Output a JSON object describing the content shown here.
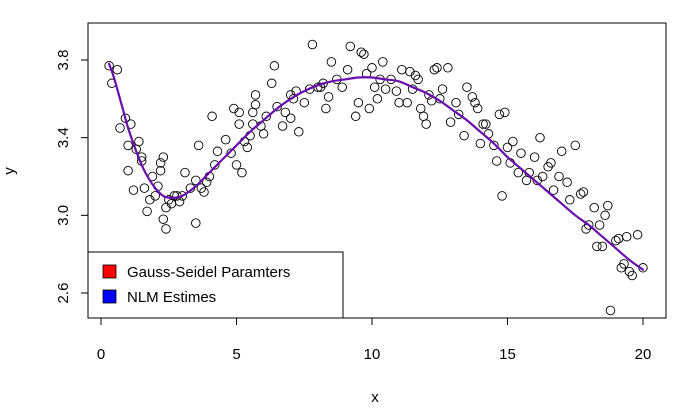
{
  "chart_data": {
    "type": "scatter",
    "xlabel": "x",
    "ylabel": "y",
    "xlim": [
      0,
      20
    ],
    "ylim": [
      2.6,
      3.8
    ],
    "x_ticks": [
      0,
      5,
      10,
      15,
      20
    ],
    "x_tick_labels": [
      "0",
      "5",
      "10",
      "15",
      "20"
    ],
    "y_ticks": [
      2.6,
      3.0,
      3.4,
      3.8
    ],
    "y_tick_labels": [
      "2.6",
      "3.0",
      "3.4",
      "3.8"
    ],
    "points": [
      [
        0.3,
        3.77
      ],
      [
        0.4,
        3.68
      ],
      [
        0.6,
        3.75
      ],
      [
        0.7,
        3.45
      ],
      [
        0.9,
        3.5
      ],
      [
        1.0,
        3.23
      ],
      [
        1.0,
        3.36
      ],
      [
        1.1,
        3.47
      ],
      [
        1.2,
        3.13
      ],
      [
        1.3,
        3.34
      ],
      [
        1.4,
        3.38
      ],
      [
        1.5,
        3.28
      ],
      [
        1.5,
        3.3
      ],
      [
        1.6,
        3.14
      ],
      [
        1.7,
        3.02
      ],
      [
        1.8,
        3.08
      ],
      [
        1.9,
        3.2
      ],
      [
        2.0,
        3.1
      ],
      [
        2.1,
        3.15
      ],
      [
        2.2,
        3.23
      ],
      [
        2.2,
        3.27
      ],
      [
        2.3,
        3.3
      ],
      [
        2.3,
        2.98
      ],
      [
        2.4,
        3.04
      ],
      [
        2.4,
        2.93
      ],
      [
        2.5,
        3.08
      ],
      [
        2.6,
        3.06
      ],
      [
        2.7,
        3.1
      ],
      [
        2.8,
        3.1
      ],
      [
        2.9,
        3.07
      ],
      [
        3.0,
        3.1
      ],
      [
        3.1,
        3.22
      ],
      [
        3.3,
        3.14
      ],
      [
        3.5,
        3.18
      ],
      [
        3.5,
        2.96
      ],
      [
        3.6,
        3.36
      ],
      [
        3.7,
        3.14
      ],
      [
        3.8,
        3.12
      ],
      [
        3.9,
        3.17
      ],
      [
        4.0,
        3.2
      ],
      [
        4.2,
        3.26
      ],
      [
        4.3,
        3.33
      ],
      [
        4.1,
        3.51
      ],
      [
        4.6,
        3.39
      ],
      [
        4.8,
        3.32
      ],
      [
        4.9,
        3.55
      ],
      [
        5.0,
        3.26
      ],
      [
        5.1,
        3.47
      ],
      [
        5.1,
        3.53
      ],
      [
        5.2,
        3.22
      ],
      [
        5.3,
        3.38
      ],
      [
        5.4,
        3.35
      ],
      [
        5.5,
        3.41
      ],
      [
        5.6,
        3.53
      ],
      [
        5.6,
        3.47
      ],
      [
        5.7,
        3.62
      ],
      [
        5.7,
        3.57
      ],
      [
        5.9,
        3.46
      ],
      [
        6.0,
        3.42
      ],
      [
        6.1,
        3.51
      ],
      [
        6.3,
        3.68
      ],
      [
        6.4,
        3.77
      ],
      [
        6.5,
        3.56
      ],
      [
        6.7,
        3.46
      ],
      [
        6.8,
        3.53
      ],
      [
        7.0,
        3.62
      ],
      [
        7.0,
        3.5
      ],
      [
        7.1,
        3.6
      ],
      [
        7.2,
        3.64
      ],
      [
        7.3,
        3.43
      ],
      [
        7.5,
        3.58
      ],
      [
        7.7,
        3.65
      ],
      [
        7.8,
        3.88
      ],
      [
        8.0,
        3.66
      ],
      [
        8.1,
        3.66
      ],
      [
        8.2,
        3.68
      ],
      [
        8.3,
        3.55
      ],
      [
        8.4,
        3.61
      ],
      [
        8.5,
        3.79
      ],
      [
        8.7,
        3.7
      ],
      [
        8.9,
        3.66
      ],
      [
        9.1,
        3.75
      ],
      [
        9.2,
        3.87
      ],
      [
        9.4,
        3.51
      ],
      [
        9.5,
        3.58
      ],
      [
        9.6,
        3.84
      ],
      [
        9.7,
        3.83
      ],
      [
        9.8,
        3.73
      ],
      [
        9.9,
        3.55
      ],
      [
        10.0,
        3.76
      ],
      [
        10.1,
        3.66
      ],
      [
        10.2,
        3.6
      ],
      [
        10.3,
        3.7
      ],
      [
        10.4,
        3.79
      ],
      [
        10.5,
        3.65
      ],
      [
        10.7,
        3.7
      ],
      [
        10.9,
        3.64
      ],
      [
        11.0,
        3.58
      ],
      [
        11.1,
        3.75
      ],
      [
        11.3,
        3.58
      ],
      [
        11.4,
        3.74
      ],
      [
        11.5,
        3.65
      ],
      [
        11.6,
        3.72
      ],
      [
        11.7,
        3.7
      ],
      [
        11.8,
        3.55
      ],
      [
        11.9,
        3.51
      ],
      [
        12.0,
        3.47
      ],
      [
        12.1,
        3.62
      ],
      [
        12.2,
        3.59
      ],
      [
        12.3,
        3.75
      ],
      [
        12.4,
        3.76
      ],
      [
        12.5,
        3.6
      ],
      [
        12.6,
        3.65
      ],
      [
        12.8,
        3.76
      ],
      [
        12.9,
        3.48
      ],
      [
        13.1,
        3.58
      ],
      [
        13.2,
        3.52
      ],
      [
        13.4,
        3.41
      ],
      [
        13.5,
        3.66
      ],
      [
        13.7,
        3.61
      ],
      [
        13.8,
        3.58
      ],
      [
        13.9,
        3.55
      ],
      [
        14.0,
        3.37
      ],
      [
        14.1,
        3.47
      ],
      [
        14.2,
        3.47
      ],
      [
        14.3,
        3.42
      ],
      [
        14.5,
        3.36
      ],
      [
        14.6,
        3.28
      ],
      [
        14.7,
        3.52
      ],
      [
        14.8,
        3.1
      ],
      [
        14.9,
        3.53
      ],
      [
        15.0,
        3.35
      ],
      [
        15.1,
        3.27
      ],
      [
        15.2,
        3.38
      ],
      [
        15.4,
        3.22
      ],
      [
        15.5,
        3.32
      ],
      [
        15.7,
        3.18
      ],
      [
        15.8,
        3.22
      ],
      [
        16.0,
        3.3
      ],
      [
        16.1,
        3.18
      ],
      [
        16.2,
        3.4
      ],
      [
        16.3,
        3.2
      ],
      [
        16.5,
        3.25
      ],
      [
        16.6,
        3.27
      ],
      [
        16.7,
        3.13
      ],
      [
        16.9,
        3.2
      ],
      [
        17.0,
        3.33
      ],
      [
        17.2,
        3.17
      ],
      [
        17.3,
        3.08
      ],
      [
        17.5,
        3.36
      ],
      [
        17.7,
        3.11
      ],
      [
        17.8,
        3.12
      ],
      [
        17.9,
        2.93
      ],
      [
        18.0,
        2.95
      ],
      [
        18.2,
        3.04
      ],
      [
        18.3,
        2.84
      ],
      [
        18.4,
        2.95
      ],
      [
        18.5,
        2.84
      ],
      [
        18.6,
        3.0
      ],
      [
        18.7,
        3.05
      ],
      [
        18.8,
        2.51
      ],
      [
        19.0,
        2.87
      ],
      [
        19.1,
        2.88
      ],
      [
        19.2,
        2.73
      ],
      [
        19.3,
        2.75
      ],
      [
        19.4,
        2.89
      ],
      [
        19.5,
        2.71
      ],
      [
        19.6,
        2.69
      ],
      [
        19.8,
        2.9
      ],
      [
        20.0,
        2.73
      ]
    ],
    "fitted_x": [
      0.3,
      0.5,
      0.8,
      1.0,
      1.3,
      1.6,
      2.0,
      2.3,
      2.6,
      3.0,
      3.5,
      4.0,
      4.5,
      5.0,
      5.5,
      6.0,
      6.5,
      7.0,
      7.5,
      8.0,
      8.5,
      9.0,
      9.5,
      10.0,
      10.5,
      11.0,
      11.5,
      12.0,
      12.5,
      13.0,
      13.5,
      14.0,
      14.5,
      15.0,
      15.5,
      16.0,
      16.5,
      17.0,
      17.5,
      18.0,
      18.5,
      19.0,
      19.5,
      20.0
    ],
    "fitted_y": [
      3.78,
      3.7,
      3.55,
      3.45,
      3.33,
      3.23,
      3.14,
      3.1,
      3.09,
      3.1,
      3.15,
      3.22,
      3.29,
      3.36,
      3.43,
      3.49,
      3.55,
      3.6,
      3.64,
      3.67,
      3.69,
      3.7,
      3.71,
      3.71,
      3.7,
      3.69,
      3.66,
      3.63,
      3.59,
      3.54,
      3.49,
      3.43,
      3.37,
      3.3,
      3.24,
      3.18,
      3.12,
      3.06,
      3.0,
      2.95,
      2.89,
      2.83,
      2.77,
      2.72
    ],
    "series": [
      {
        "name": "Gauss-Seidel Paramters",
        "color": "#ff0000"
      },
      {
        "name": "NLM Estimes",
        "color": "#0000ff"
      }
    ],
    "curve_color": "#6a0dad",
    "legend_position": "bottom-left",
    "grid": false
  }
}
